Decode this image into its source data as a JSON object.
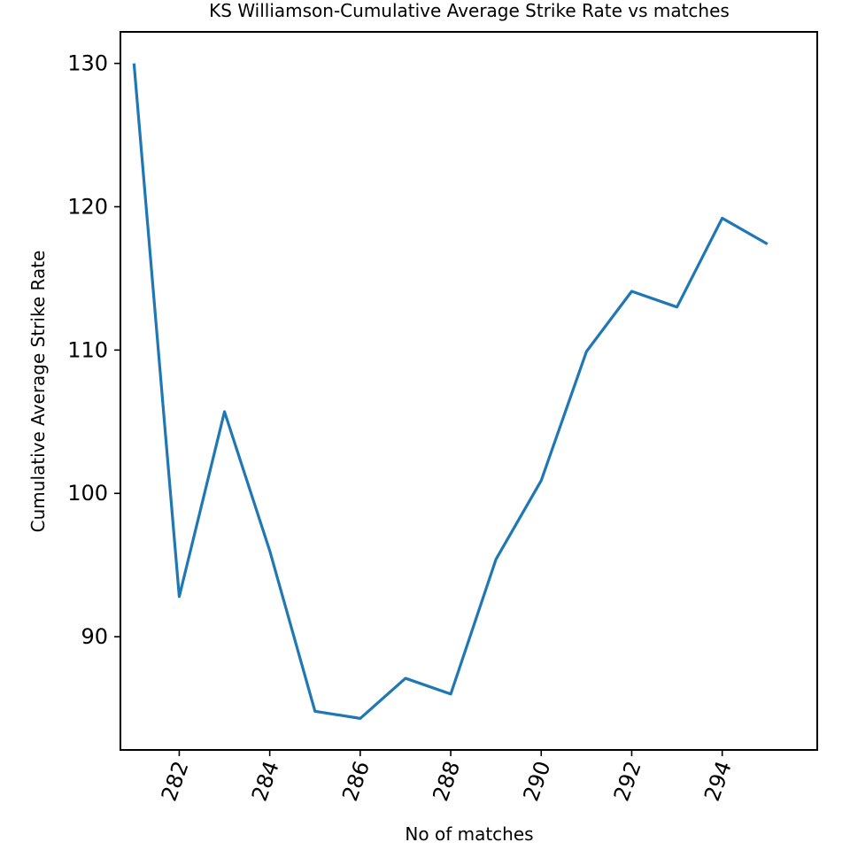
{
  "chart_data": {
    "type": "line",
    "title": "KS Williamson-Cumulative Average Strike Rate vs matches",
    "xlabel": "No of matches",
    "ylabel": "Cumulative Average Strike Rate",
    "xlim": [
      280.7,
      296.1
    ],
    "ylim": [
      82.1,
      132.2
    ],
    "x_ticks": [
      282,
      284,
      286,
      288,
      290,
      292,
      294
    ],
    "y_ticks": [
      90,
      100,
      110,
      120,
      130
    ],
    "x_tick_rotation_deg": -70,
    "grid": false,
    "legend": "none",
    "series": [
      {
        "color": "#1f77b4",
        "x": [
          281,
          282,
          283,
          284,
          285,
          286,
          287,
          288,
          289,
          290,
          291,
          292,
          293,
          294,
          295
        ],
        "y": [
          130.0,
          92.8,
          105.7,
          96.0,
          84.8,
          84.3,
          87.1,
          86.0,
          95.4,
          100.9,
          109.9,
          114.1,
          113.0,
          119.2,
          117.4
        ]
      }
    ]
  }
}
